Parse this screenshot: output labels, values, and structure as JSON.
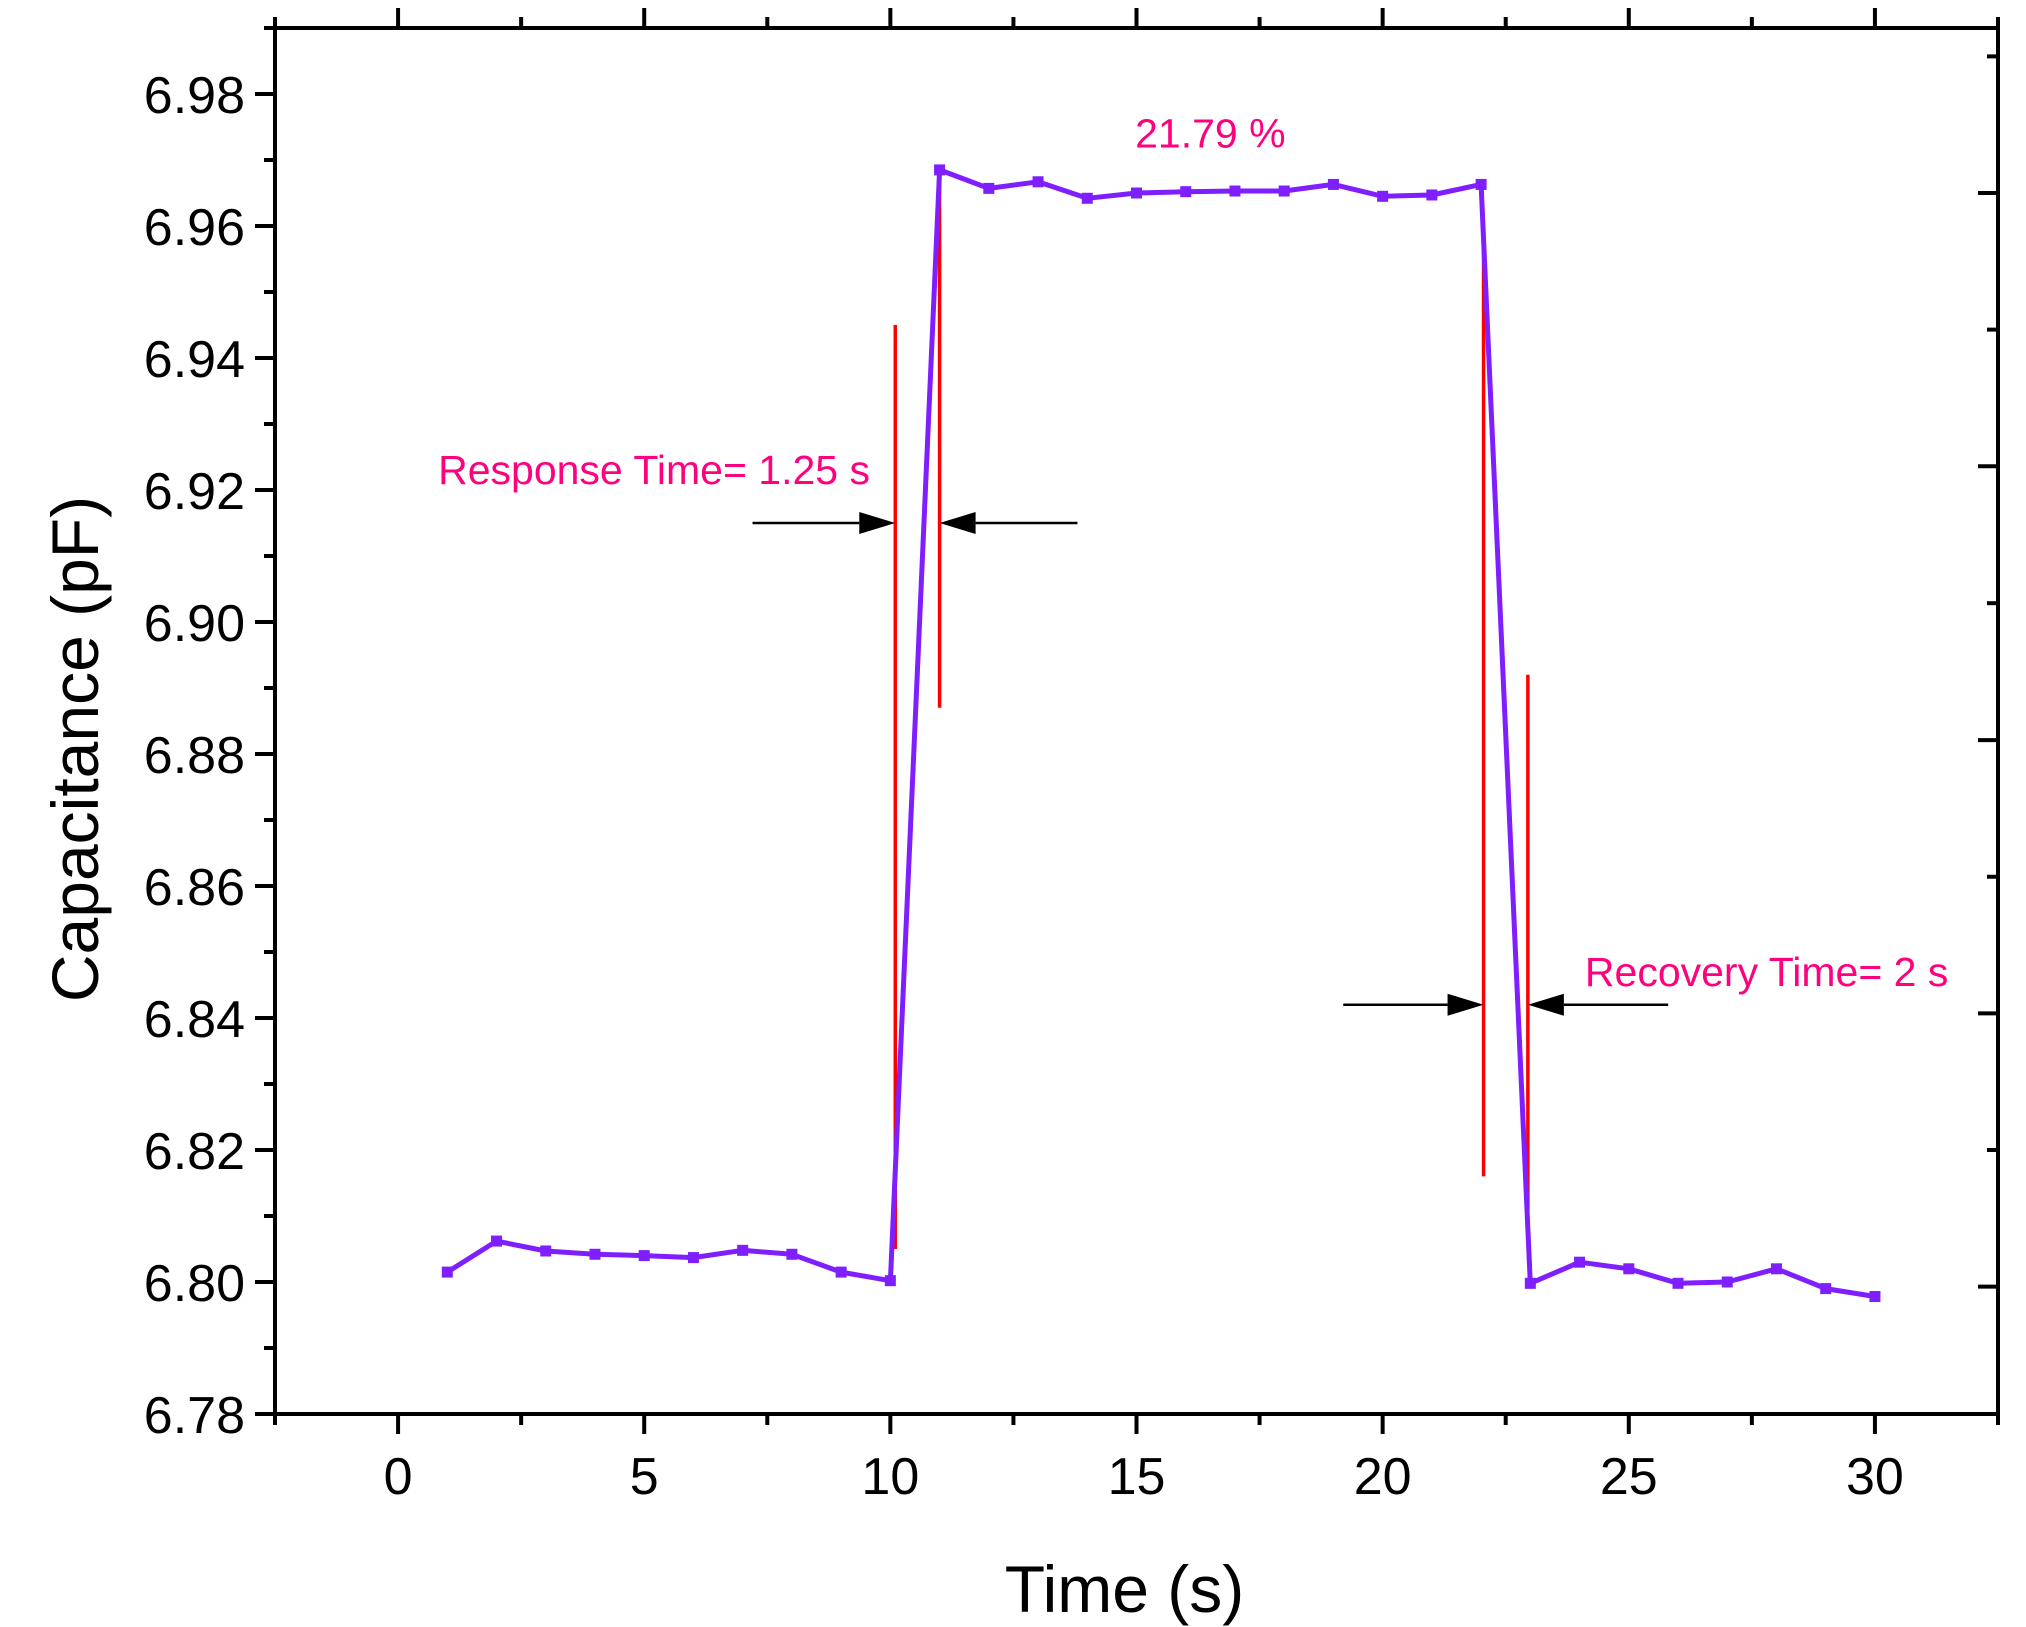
{
  "chart_data": {
    "type": "line",
    "xlabel": "Time (s)",
    "ylabel": "Capacitance (pF)",
    "xlim": [
      -2.5,
      32.5
    ],
    "ylim": [
      6.78,
      6.99
    ],
    "x_ticks": [
      0,
      5,
      10,
      15,
      20,
      25,
      30
    ],
    "x_tick_labels": [
      "0",
      "5",
      "10",
      "15",
      "20",
      "25",
      "30"
    ],
    "y_ticks": [
      6.78,
      6.8,
      6.82,
      6.84,
      6.86,
      6.88,
      6.9,
      6.92,
      6.94,
      6.96,
      6.98
    ],
    "y_tick_labels": [
      "6.78",
      "6.80",
      "6.82",
      "6.84",
      "6.86",
      "6.88",
      "6.90",
      "6.92",
      "6.94",
      "6.96",
      "6.98"
    ],
    "right_axis_ticks": [
      6.7993,
      6.8407,
      6.8821,
      6.9236,
      6.965
    ],
    "grid": false,
    "series": [
      {
        "name": "Capacitance",
        "color": "#7f1fff",
        "marker": "square",
        "x": [
          1,
          2,
          3,
          4,
          5,
          6,
          7,
          8,
          9,
          10,
          11,
          12,
          13,
          14,
          15,
          16,
          17,
          18,
          19,
          20,
          21,
          22,
          23,
          24,
          25,
          26,
          27,
          28,
          29,
          30
        ],
        "y": [
          6.8015,
          6.8062,
          6.8047,
          6.8042,
          6.804,
          6.8037,
          6.8048,
          6.8042,
          6.8015,
          6.8002,
          6.9685,
          6.9657,
          6.9667,
          6.9642,
          6.965,
          6.9652,
          6.9653,
          6.9653,
          6.9663,
          6.9645,
          6.9647,
          6.9663,
          6.7998,
          6.803,
          6.802,
          6.7998,
          6.8,
          6.802,
          6.799,
          6.7978
        ]
      }
    ],
    "annotations": [
      {
        "text": "21.79 %",
        "x": 16.5,
        "y": 6.974,
        "color": "#ff007f"
      },
      {
        "text": "Response Time= 1.25 s",
        "x": 5.2,
        "y": 6.923,
        "color": "#ff007f"
      },
      {
        "text": "Recovery Time= 2 s",
        "x": 27.8,
        "y": 6.847,
        "color": "#ff007f"
      }
    ],
    "reference_lines": [
      {
        "x": 10.1,
        "y_from": 6.805,
        "y_to": 6.945,
        "color": "#ff0000"
      },
      {
        "x": 11.0,
        "y_from": 6.887,
        "y_to": 6.969,
        "color": "#ff0000"
      },
      {
        "x": 22.05,
        "y_from": 6.816,
        "y_to": 6.956,
        "color": "#ff0000"
      },
      {
        "x": 22.95,
        "y_from": 6.811,
        "y_to": 6.892,
        "color": "#ff0000"
      }
    ],
    "arrows": [
      {
        "from_x": 7.2,
        "to_x": 10.1,
        "y": 6.915,
        "color": "#000000"
      },
      {
        "from_x": 13.8,
        "to_x": 11.0,
        "y": 6.915,
        "color": "#000000"
      },
      {
        "from_x": 19.2,
        "to_x": 22.05,
        "y": 6.842,
        "color": "#000000"
      },
      {
        "from_x": 25.8,
        "to_x": 22.95,
        "y": 6.842,
        "color": "#000000"
      }
    ]
  }
}
